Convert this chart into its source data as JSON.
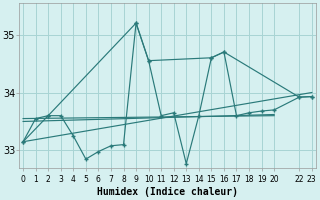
{
  "xlabel": "Humidex (Indice chaleur)",
  "background_color": "#d6f0f0",
  "grid_color": "#a8d4d4",
  "line_color": "#2a7a7a",
  "ylim": [
    32.7,
    35.55
  ],
  "yticks": [
    33,
    34,
    35
  ],
  "xlim": [
    -0.3,
    23.3
  ],
  "xtick_positions": [
    0,
    1,
    2,
    3,
    4,
    5,
    6,
    7,
    8,
    9,
    10,
    11,
    12,
    13,
    14,
    15,
    16,
    17,
    18,
    19,
    20,
    22,
    23
  ],
  "xtick_labels": [
    "0",
    "1",
    "2",
    "3",
    "4",
    "5",
    "6",
    "7",
    "8",
    "9",
    "10",
    "11",
    "12",
    "13",
    "14",
    "15",
    "16",
    "17",
    "18",
    "19",
    "20",
    "22",
    "23"
  ],
  "series1_x": [
    0,
    1,
    2,
    3,
    4,
    5,
    6,
    7,
    8,
    9,
    10,
    11,
    12,
    13,
    14,
    15,
    16,
    17,
    18,
    19,
    20,
    22,
    23
  ],
  "series1_y": [
    33.15,
    33.55,
    33.6,
    33.6,
    33.25,
    32.85,
    32.98,
    33.08,
    33.1,
    35.2,
    34.55,
    33.6,
    33.65,
    32.77,
    33.6,
    34.6,
    34.7,
    33.6,
    33.65,
    33.68,
    33.7,
    33.92,
    33.93
  ],
  "series2_x": [
    0,
    2,
    9,
    10,
    15,
    16,
    22,
    23
  ],
  "series2_y": [
    33.15,
    33.6,
    35.2,
    34.55,
    34.6,
    34.7,
    33.92,
    33.93
  ],
  "trend1_x": [
    0,
    20
  ],
  "trend1_y": [
    33.55,
    33.6
  ],
  "trend2_x": [
    0,
    20
  ],
  "trend2_y": [
    33.5,
    33.62
  ],
  "trend3_x": [
    0,
    23
  ],
  "trend3_y": [
    33.15,
    34.0
  ]
}
